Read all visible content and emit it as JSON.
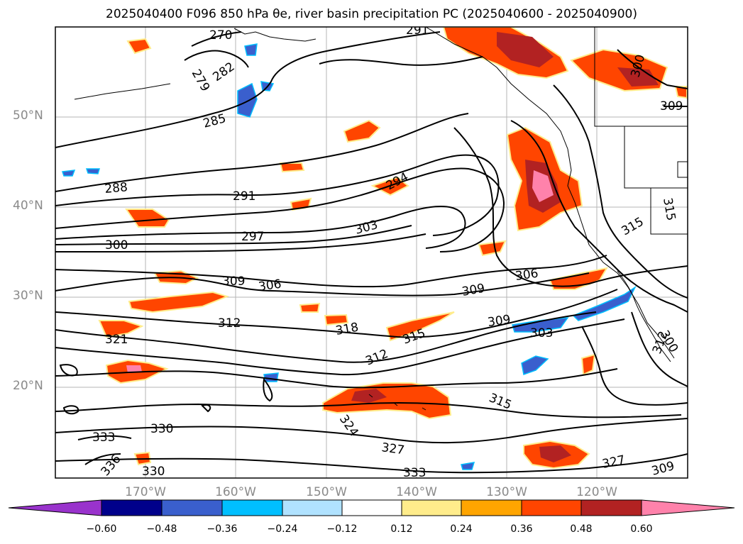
{
  "title": "2025040400 F096 850 hPa θe, river basin precipitation PC (2025040600 - 2025040900)",
  "lat_ticks": [
    "50°N",
    "40°N",
    "30°N",
    "20°N"
  ],
  "lon_ticks": [
    "170°W",
    "160°W",
    "150°W",
    "140°W",
    "130°W",
    "120°W"
  ],
  "contour_labels": [
    "270",
    "279",
    "282",
    "285",
    "288",
    "291",
    "294",
    "297",
    "300",
    "303",
    "306",
    "309",
    "309",
    "312",
    "315",
    "318",
    "321",
    "327",
    "330",
    "333",
    "336",
    "309",
    "315",
    "306",
    "303",
    "312",
    "315",
    "324",
    "327",
    "330",
    "333",
    "309",
    "300",
    "312",
    "291",
    "300",
    "309",
    "315"
  ],
  "colorbar": {
    "ticks": [
      "−0.60",
      "−0.48",
      "−0.36",
      "−0.24",
      "−0.12",
      "0.12",
      "0.24",
      "0.36",
      "0.48",
      "0.60"
    ],
    "colors": [
      "#9933cc",
      "#00008b",
      "#3a5fcd",
      "#00bfff",
      "#b0e2ff",
      "#ffffff",
      "#ffec8b",
      "#ffa500",
      "#ff4500",
      "#b22222",
      "#ff82ab",
      "#ff82ab"
    ],
    "extend": "both"
  },
  "colors": {
    "positive_high": "#ff82ab",
    "positive_strong": "#b22222",
    "positive_mid": "#ff4500",
    "positive_low": "#ffa500",
    "positive_min": "#ffec8b",
    "negative_low": "#00bfff",
    "negative_mid": "#3a5fcd",
    "negative_strong": "#00008b"
  }
}
